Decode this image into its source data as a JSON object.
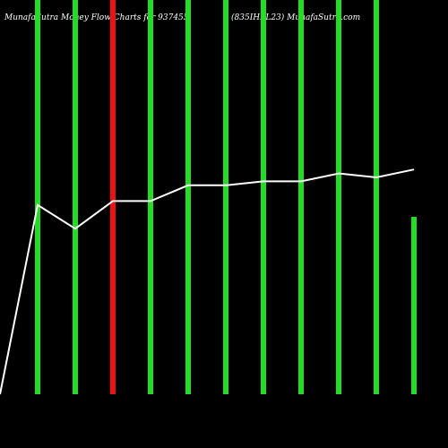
{
  "chart_data": {
    "type": "bar-line",
    "title": "MunafaSutra Money Flow Charts for 937455",
    "subtitle": "(835IHFL23) MunafaSutra.com",
    "xlim": [
      0,
      11
    ],
    "ylim": [
      0,
      100
    ],
    "series": [
      {
        "type": "bar",
        "x": [
          1,
          2,
          3,
          4,
          5,
          6,
          7,
          8,
          9,
          10,
          11
        ],
        "values": [
          100,
          100,
          100,
          100,
          100,
          100,
          100,
          100,
          100,
          100,
          45
        ],
        "colors": [
          "#22dd22",
          "#22dd22",
          "#ee1111",
          "#22dd22",
          "#22dd22",
          "#22dd22",
          "#22dd22",
          "#22dd22",
          "#22dd22",
          "#22dd22",
          "#22dd22"
        ]
      },
      {
        "type": "line",
        "color": "#ffffff",
        "x": [
          0,
          1,
          2,
          3,
          4,
          5,
          6,
          7,
          8,
          9,
          10,
          11
        ],
        "values": [
          0,
          48,
          42,
          49,
          49,
          53,
          53,
          54,
          54,
          56,
          55,
          57
        ]
      }
    ]
  }
}
